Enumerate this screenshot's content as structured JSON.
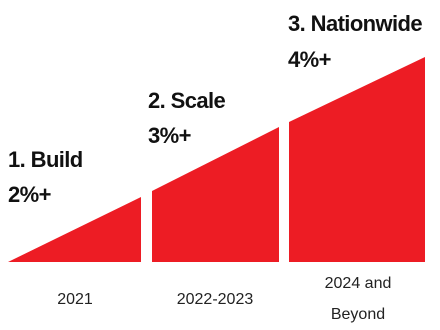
{
  "colors": {
    "ramp": "#ed1c24",
    "text": "#111111"
  },
  "phases": [
    {
      "title": "1. Build",
      "value": "2%+",
      "period": "2021"
    },
    {
      "title": "2. Scale",
      "value": "3%+",
      "period": "2022-2023"
    },
    {
      "title": "3. Nationwide",
      "value": "4%+",
      "period": "2024 and\nBeyond"
    }
  ]
}
